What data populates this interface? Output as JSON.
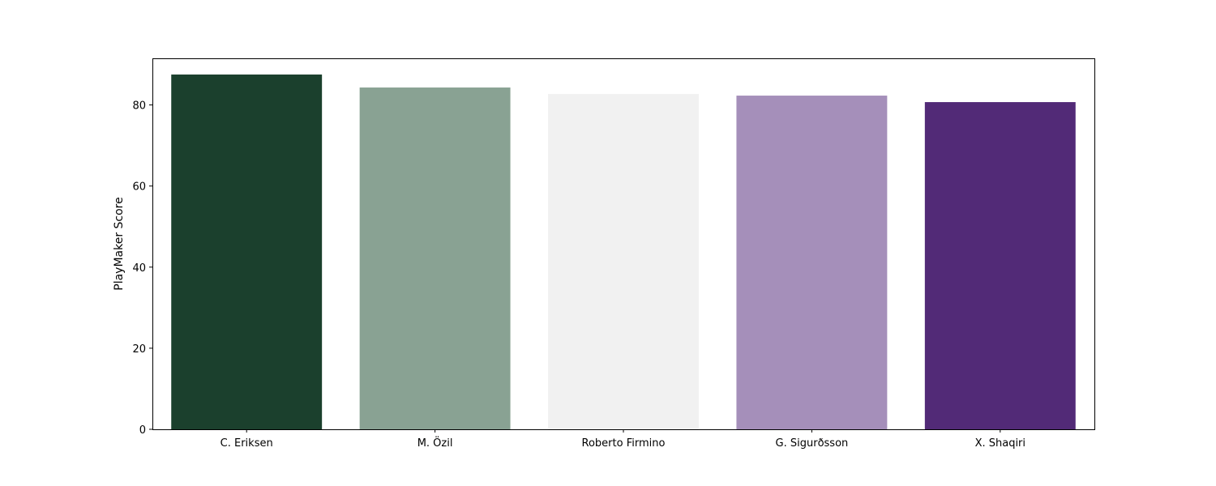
{
  "chart_data": {
    "type": "bar",
    "title": "",
    "xlabel": "",
    "ylabel": "PlayMaker Score",
    "categories": [
      "C. Eriksen",
      "M. Özil",
      "Roberto Firmino",
      "G. Sigurðsson",
      "X. Shaqiri"
    ],
    "values": [
      87.5,
      84.3,
      82.7,
      82.3,
      80.7
    ],
    "colors": [
      "#1b402d",
      "#89a293",
      "#f1f1f1",
      "#a58fba",
      "#522a77"
    ],
    "ylim": [
      0,
      91.5
    ],
    "yticks": [
      0,
      20,
      40,
      60,
      80
    ],
    "grid": false,
    "legend": "none"
  }
}
